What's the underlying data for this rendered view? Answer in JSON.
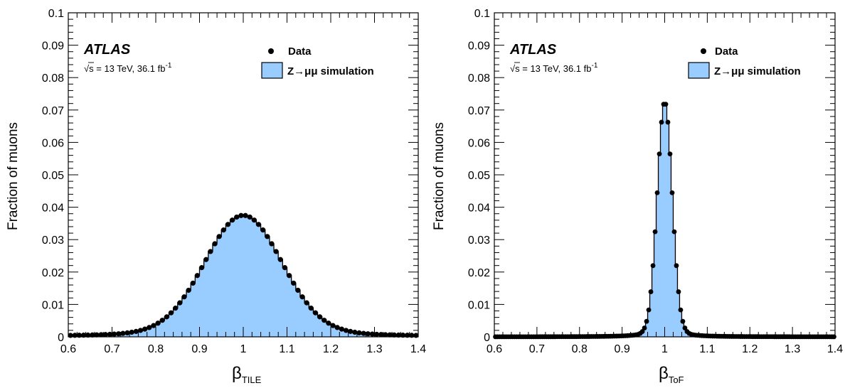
{
  "colors": {
    "fill": "#99ccff",
    "line": "#000000",
    "marker": "#000000"
  },
  "chart_data": [
    {
      "type": "histogram",
      "xlabel_symbol": "β",
      "xlabel_sub": "TILE",
      "ylabel": "Fraction of muons",
      "xlim": [
        0.6,
        1.4
      ],
      "ylim": [
        0,
        0.1
      ],
      "xticks": [
        "0.6",
        "0.7",
        "0.8",
        "0.9",
        "1",
        "1.1",
        "1.2",
        "1.3",
        "1.4"
      ],
      "yticks": [
        "0",
        "0.01",
        "0.02",
        "0.03",
        "0.04",
        "0.05",
        "0.06",
        "0.07",
        "0.08",
        "0.09",
        "0.1"
      ],
      "atlas_label": "ATLAS",
      "energy_prefix": "√s = 13 TeV, 36.1 fb",
      "energy_sup": "-1",
      "legend": {
        "data": "Data",
        "simulation": "Z→μμ simulation"
      },
      "shape": {
        "peak": 0.0375,
        "center": 1.0,
        "core_sigma": 0.088,
        "tail_gamma": 0.13,
        "tail_amp": 0.0045,
        "bins": 80
      }
    },
    {
      "type": "histogram",
      "xlabel_symbol": "β",
      "xlabel_sub": "ToF",
      "ylabel": "Fraction of muons",
      "xlim": [
        0.6,
        1.4
      ],
      "ylim": [
        0,
        0.1
      ],
      "xticks": [
        "0.6",
        "0.7",
        "0.8",
        "0.9",
        "1",
        "1.1",
        "1.2",
        "1.3",
        "1.4"
      ],
      "yticks": [
        "0",
        "0.01",
        "0.02",
        "0.03",
        "0.04",
        "0.05",
        "0.06",
        "0.07",
        "0.08",
        "0.09",
        "0.1"
      ],
      "atlas_label": "ATLAS",
      "energy_prefix": "√s = 13 TeV, 36.1 fb",
      "energy_sup": "-1",
      "legend": {
        "data": "Data",
        "simulation": "Z→μμ simulation"
      },
      "shape": {
        "peak": 0.0725,
        "center": 1.0,
        "core_sigma": 0.0175,
        "tail_gamma": 0.03,
        "tail_amp": 0.0035,
        "bins": 160
      }
    }
  ]
}
